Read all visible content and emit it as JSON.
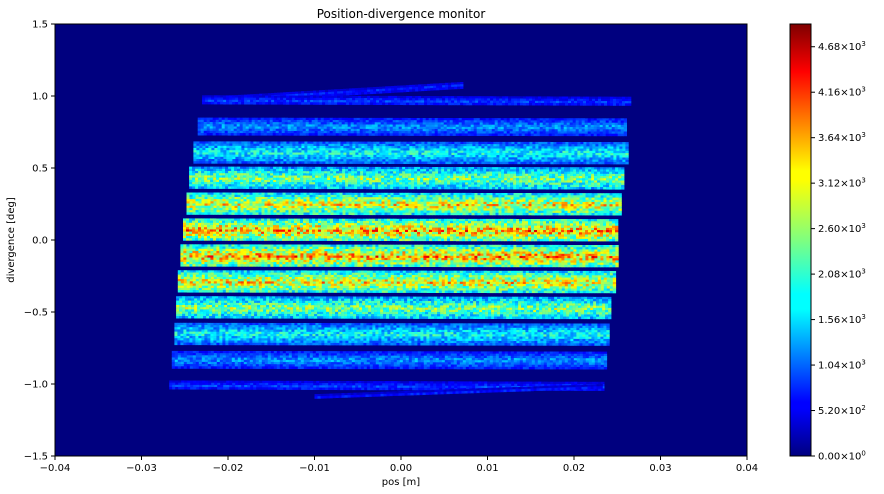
{
  "chart_data": {
    "type": "heatmap",
    "title": "Position-divergence monitor",
    "xlabel": "pos [m]",
    "ylabel": "divergence [deg]",
    "xlim": [
      -0.04,
      0.04
    ],
    "ylim": [
      -1.5,
      1.5
    ],
    "x_ticks": [
      -0.04,
      -0.03,
      -0.02,
      -0.01,
      0.0,
      0.01,
      0.02,
      0.03,
      0.04
    ],
    "x_tick_labels": [
      "−0.04",
      "−0.03",
      "−0.02",
      "−0.01",
      "0.00",
      "0.01",
      "0.02",
      "0.03",
      "0.04"
    ],
    "y_ticks": [
      -1.5,
      -1.0,
      -0.5,
      0.0,
      0.5,
      1.0,
      1.5
    ],
    "y_tick_labels": [
      "−1.5",
      "−1.0",
      "−0.5",
      "0.0",
      "0.5",
      "1.0",
      "1.5"
    ],
    "colormap": "jet",
    "colorbar": {
      "min": 0,
      "max": 4940,
      "ticks": [
        0,
        520,
        1040,
        1560,
        2080,
        2600,
        3120,
        3640,
        4160,
        4680
      ],
      "tick_mantissas": [
        "0.00",
        "5.20",
        "1.04",
        "1.56",
        "2.08",
        "2.60",
        "3.12",
        "3.64",
        "4.16",
        "4.68"
      ],
      "tick_exponents": [
        "0",
        "2",
        "3",
        "3",
        "3",
        "3",
        "3",
        "3",
        "3",
        "3"
      ]
    },
    "background_value": 0,
    "bands": [
      {
        "x_left": -0.023,
        "x_right": 0.007,
        "y_left": 0.975,
        "y_right": 1.08,
        "thickness": 0.018,
        "intensity": 800
      },
      {
        "x_left": -0.023,
        "x_right": 0.0265,
        "y_left": 0.975,
        "y_right": 0.965,
        "thickness": 0.03,
        "intensity": 900
      },
      {
        "x_left": -0.0235,
        "x_right": 0.026,
        "y_left": 0.795,
        "y_right": 0.79,
        "thickness": 0.055,
        "intensity": 1350
      },
      {
        "x_left": -0.024,
        "x_right": 0.026,
        "y_left": 0.615,
        "y_right": 0.61,
        "thickness": 0.07,
        "intensity": 1900
      },
      {
        "x_left": -0.0245,
        "x_right": 0.0255,
        "y_left": 0.435,
        "y_right": 0.43,
        "thickness": 0.075,
        "intensity": 2500
      },
      {
        "x_left": -0.0248,
        "x_right": 0.0252,
        "y_left": 0.255,
        "y_right": 0.25,
        "thickness": 0.075,
        "intensity": 3100
      },
      {
        "x_left": -0.0252,
        "x_right": 0.025,
        "y_left": 0.075,
        "y_right": 0.07,
        "thickness": 0.075,
        "intensity": 3500
      },
      {
        "x_left": -0.0255,
        "x_right": 0.0248,
        "y_left": -0.105,
        "y_right": -0.11,
        "thickness": 0.075,
        "intensity": 3500
      },
      {
        "x_left": -0.0258,
        "x_right": 0.0245,
        "y_left": -0.285,
        "y_right": -0.29,
        "thickness": 0.075,
        "intensity": 3150
      },
      {
        "x_left": -0.026,
        "x_right": 0.0242,
        "y_left": -0.465,
        "y_right": -0.47,
        "thickness": 0.075,
        "intensity": 2550
      },
      {
        "x_left": -0.0262,
        "x_right": 0.024,
        "y_left": -0.645,
        "y_right": -0.65,
        "thickness": 0.07,
        "intensity": 1900
      },
      {
        "x_left": -0.0265,
        "x_right": 0.0235,
        "y_left": -0.825,
        "y_right": -0.83,
        "thickness": 0.055,
        "intensity": 1350
      },
      {
        "x_left": -0.0268,
        "x_right": 0.0232,
        "y_left": -1.005,
        "y_right": -1.015,
        "thickness": 0.03,
        "intensity": 900
      },
      {
        "x_left": -0.01,
        "x_right": 0.023,
        "y_left": -1.085,
        "y_right": -1.015,
        "thickness": 0.015,
        "intensity": 700
      }
    ]
  }
}
